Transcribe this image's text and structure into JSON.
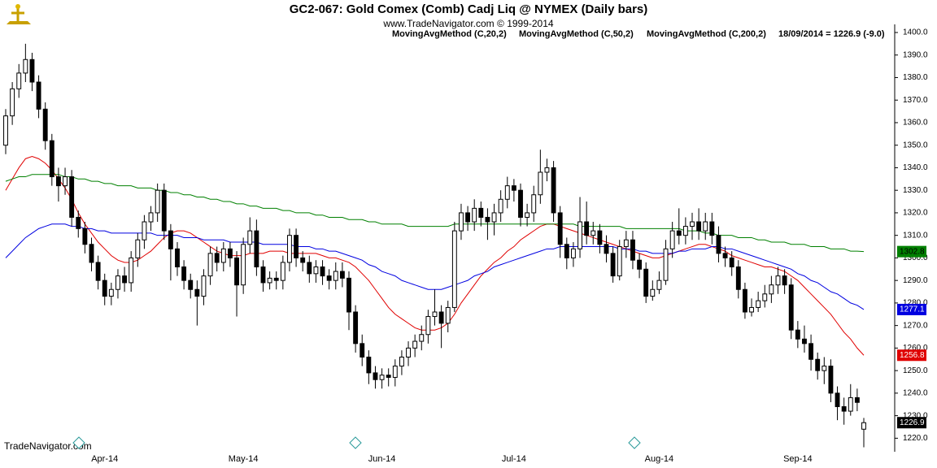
{
  "chart_data": {
    "type": "candlestick",
    "title": "GC2-067:  Gold Comex (Comb) Cadj Liq @ NYMEX  (Daily bars)",
    "subtitle": "www.TradeNavigator.com © 1999-2014",
    "annotation": "18/09/2014 = 1226.9 (-9.0)",
    "footer": "TradeNavigator.com",
    "up_color": "#ffffff",
    "down_color": "#000000",
    "categories": [
      null,
      null,
      null,
      null,
      null,
      null,
      null,
      null,
      null,
      null,
      null,
      null,
      null,
      null,
      null,
      "Apr-14",
      null,
      null,
      null,
      null,
      null,
      null,
      null,
      null,
      null,
      null,
      null,
      null,
      null,
      null,
      null,
      null,
      null,
      null,
      null,
      null,
      "May-14",
      null,
      null,
      null,
      null,
      null,
      null,
      null,
      null,
      null,
      null,
      null,
      null,
      null,
      null,
      null,
      null,
      null,
      null,
      null,
      null,
      "Jun-14",
      null,
      null,
      null,
      null,
      null,
      null,
      null,
      null,
      null,
      null,
      null,
      null,
      null,
      null,
      null,
      null,
      null,
      null,
      null,
      "Jul-14",
      null,
      null,
      null,
      null,
      null,
      null,
      null,
      null,
      null,
      null,
      null,
      null,
      null,
      null,
      null,
      null,
      null,
      null,
      null,
      null,
      null,
      "Aug-14",
      null,
      null,
      null,
      null,
      null,
      null,
      null,
      null,
      null,
      null,
      null,
      null,
      null,
      null,
      null,
      null,
      null,
      null,
      null,
      null,
      "Sep-14",
      null,
      null,
      null,
      null,
      null,
      null,
      null,
      null,
      null,
      null
    ],
    "open": [
      1350,
      1363,
      1375,
      1382,
      1388,
      1378,
      1366,
      1352,
      1336,
      1332,
      1336,
      1318,
      1313,
      1306,
      1298,
      1290,
      1283,
      1286,
      1292,
      1289,
      1300,
      1308,
      1316,
      1320,
      1330,
      1312,
      1304,
      1296,
      1290,
      1286,
      1283,
      1292,
      1302,
      1298,
      1304,
      1300,
      1288,
      1306,
      1312,
      1296,
      1289,
      1291,
      1290,
      1298,
      1310,
      1300,
      1298,
      1293,
      1296,
      1292,
      1290,
      1294,
      1291,
      1276,
      1262,
      1256,
      1249,
      1246,
      1248,
      1247,
      1252,
      1256,
      1260,
      1263,
      1266,
      1274,
      1276,
      1271,
      1278,
      1312,
      1320,
      1316,
      1322,
      1318,
      1316,
      1320,
      1326,
      1332,
      1330,
      1318,
      1320,
      1328,
      1338,
      1340,
      1320,
      1306,
      1300,
      1304,
      1316,
      1310,
      1312,
      1306,
      1302,
      1292,
      1305,
      1308,
      1299,
      1295,
      1283,
      1286,
      1290,
      1304,
      1312,
      1310,
      1314,
      1316,
      1312,
      1316,
      1310,
      1302,
      1300,
      1296,
      1286,
      1276,
      1278,
      1281,
      1284,
      1288,
      1292,
      1288,
      1268,
      1264,
      1262,
      1255,
      1250,
      1252,
      1240,
      1234,
      1232,
      1238,
      1224
    ],
    "high": [
      1366,
      1378,
      1386,
      1395,
      1391,
      1381,
      1369,
      1355,
      1340,
      1340,
      1339,
      1321,
      1316,
      1309,
      1301,
      1293,
      1289,
      1295,
      1296,
      1303,
      1311,
      1319,
      1323,
      1333,
      1333,
      1315,
      1307,
      1299,
      1293,
      1290,
      1295,
      1305,
      1305,
      1307,
      1307,
      1303,
      1309,
      1318,
      1317,
      1299,
      1294,
      1294,
      1301,
      1313,
      1313,
      1303,
      1301,
      1299,
      1299,
      1295,
      1298,
      1298,
      1294,
      1279,
      1266,
      1259,
      1252,
      1251,
      1251,
      1255,
      1259,
      1263,
      1266,
      1270,
      1277,
      1286,
      1279,
      1281,
      1316,
      1324,
      1323,
      1326,
      1325,
      1322,
      1324,
      1330,
      1336,
      1335,
      1333,
      1324,
      1332,
      1348,
      1344,
      1343,
      1323,
      1309,
      1307,
      1327,
      1325,
      1316,
      1315,
      1310,
      1305,
      1308,
      1312,
      1312,
      1302,
      1298,
      1290,
      1294,
      1308,
      1316,
      1322,
      1318,
      1320,
      1322,
      1320,
      1320,
      1314,
      1305,
      1303,
      1299,
      1289,
      1282,
      1285,
      1288,
      1292,
      1296,
      1295,
      1291,
      1272,
      1270,
      1266,
      1258,
      1256,
      1255,
      1243,
      1238,
      1244,
      1242,
      1229
    ],
    "low": [
      1346,
      1359,
      1371,
      1378,
      1374,
      1362,
      1348,
      1332,
      1325,
      1328,
      1314,
      1309,
      1302,
      1294,
      1286,
      1279,
      1279,
      1282,
      1285,
      1285,
      1296,
      1304,
      1312,
      1316,
      1308,
      1290,
      1292,
      1286,
      1282,
      1270,
      1279,
      1288,
      1294,
      1294,
      1296,
      1274,
      1284,
      1302,
      1292,
      1285,
      1286,
      1286,
      1286,
      1294,
      1296,
      1294,
      1289,
      1289,
      1288,
      1286,
      1286,
      1287,
      1268,
      1258,
      1252,
      1244,
      1242,
      1242,
      1243,
      1243,
      1248,
      1252,
      1256,
      1259,
      1262,
      1270,
      1260,
      1267,
      1276,
      1308,
      1312,
      1312,
      1314,
      1308,
      1310,
      1316,
      1322,
      1325,
      1314,
      1314,
      1316,
      1324,
      1334,
      1316,
      1300,
      1295,
      1296,
      1300,
      1306,
      1306,
      1302,
      1298,
      1289,
      1290,
      1300,
      1295,
      1291,
      1280,
      1281,
      1284,
      1288,
      1300,
      1306,
      1306,
      1308,
      1308,
      1308,
      1306,
      1298,
      1296,
      1292,
      1282,
      1273,
      1274,
      1276,
      1278,
      1280,
      1284,
      1284,
      1264,
      1260,
      1258,
      1250,
      1246,
      1244,
      1236,
      1228,
      1226,
      1230,
      1232,
      1216
    ],
    "close": [
      1363,
      1375,
      1382,
      1388,
      1378,
      1366,
      1352,
      1336,
      1332,
      1336,
      1318,
      1313,
      1306,
      1298,
      1290,
      1283,
      1286,
      1292,
      1289,
      1300,
      1308,
      1316,
      1320,
      1330,
      1312,
      1304,
      1296,
      1290,
      1286,
      1283,
      1292,
      1302,
      1298,
      1304,
      1300,
      1288,
      1306,
      1312,
      1296,
      1289,
      1291,
      1290,
      1298,
      1310,
      1300,
      1298,
      1293,
      1296,
      1292,
      1290,
      1294,
      1291,
      1276,
      1262,
      1256,
      1249,
      1246,
      1248,
      1247,
      1252,
      1256,
      1260,
      1263,
      1266,
      1274,
      1276,
      1271,
      1278,
      1312,
      1320,
      1316,
      1322,
      1318,
      1316,
      1320,
      1326,
      1332,
      1330,
      1318,
      1320,
      1328,
      1338,
      1340,
      1320,
      1306,
      1300,
      1304,
      1316,
      1310,
      1312,
      1306,
      1302,
      1292,
      1305,
      1308,
      1299,
      1295,
      1283,
      1286,
      1290,
      1304,
      1312,
      1310,
      1314,
      1316,
      1312,
      1316,
      1310,
      1302,
      1300,
      1296,
      1286,
      1276,
      1278,
      1281,
      1284,
      1288,
      1292,
      1288,
      1268,
      1264,
      1262,
      1255,
      1250,
      1252,
      1240,
      1234,
      1232,
      1238,
      1235.9,
      1226.9
    ],
    "series": [
      {
        "name": "MovingAvgMethod (C,20,2)",
        "color": "#e00000",
        "values": [
          1330,
          1335,
          1340,
          1344,
          1345,
          1344,
          1342,
          1339,
          1335,
          1331,
          1326,
          1320,
          1315,
          1311,
          1307,
          1304,
          1301,
          1299,
          1298,
          1298,
          1299,
          1301,
          1303,
          1306,
          1309,
          1311,
          1312,
          1312,
          1311,
          1309,
          1307,
          1305,
          1303,
          1302,
          1301,
          1301,
          1301,
          1302,
          1302,
          1302,
          1303,
          1303,
          1303,
          1302,
          1302,
          1302,
          1302,
          1302,
          1301,
          1300,
          1300,
          1299,
          1298,
          1296,
          1293,
          1290,
          1286,
          1282,
          1278,
          1275,
          1273,
          1271,
          1269,
          1268,
          1268,
          1268,
          1269,
          1271,
          1275,
          1280,
          1284,
          1288,
          1292,
          1295,
          1298,
          1300,
          1303,
          1305,
          1308,
          1310,
          1312,
          1314,
          1315,
          1315,
          1314,
          1313,
          1312,
          1311,
          1310,
          1309,
          1308,
          1307,
          1306,
          1305,
          1304,
          1303,
          1302,
          1301,
          1300,
          1300,
          1301,
          1302,
          1303,
          1304,
          1305,
          1306,
          1306,
          1305,
          1304,
          1303,
          1301,
          1300,
          1299,
          1298,
          1297,
          1296,
          1296,
          1295,
          1294,
          1292,
          1290,
          1287,
          1284,
          1281,
          1278,
          1275,
          1271,
          1267,
          1264,
          1260,
          1256.8
        ]
      },
      {
        "name": "MovingAvgMethod (C,50,2)",
        "color": "#0000e0",
        "values": [
          1300,
          1303,
          1306,
          1309,
          1311,
          1313,
          1314,
          1315,
          1315,
          1315,
          1314,
          1314,
          1313,
          1313,
          1312,
          1312,
          1311,
          1311,
          1311,
          1311,
          1311,
          1311,
          1311,
          1310,
          1310,
          1310,
          1310,
          1309,
          1309,
          1309,
          1308,
          1308,
          1308,
          1308,
          1307,
          1307,
          1307,
          1307,
          1307,
          1306,
          1306,
          1306,
          1306,
          1306,
          1305,
          1305,
          1305,
          1304,
          1304,
          1303,
          1303,
          1302,
          1301,
          1300,
          1299,
          1297,
          1296,
          1294,
          1293,
          1292,
          1290,
          1289,
          1288,
          1287,
          1286,
          1286,
          1286,
          1287,
          1288,
          1289,
          1290,
          1292,
          1293,
          1294,
          1296,
          1297,
          1298,
          1299,
          1300,
          1301,
          1302,
          1303,
          1304,
          1304,
          1305,
          1305,
          1305,
          1305,
          1305,
          1305,
          1305,
          1305,
          1305,
          1304,
          1304,
          1304,
          1303,
          1303,
          1302,
          1302,
          1302,
          1302,
          1303,
          1303,
          1304,
          1304,
          1304,
          1305,
          1305,
          1304,
          1304,
          1303,
          1302,
          1301,
          1300,
          1299,
          1298,
          1297,
          1296,
          1295,
          1293,
          1292,
          1290,
          1289,
          1287,
          1285,
          1284,
          1282,
          1280,
          1279,
          1277.1
        ]
      },
      {
        "name": "MovingAvgMethod (C,200,2)",
        "color": "#008000",
        "values": [
          1334,
          1335,
          1336,
          1336,
          1337,
          1337,
          1337,
          1337,
          1337,
          1336,
          1336,
          1335,
          1335,
          1334,
          1334,
          1333,
          1333,
          1332,
          1332,
          1332,
          1331,
          1331,
          1331,
          1330,
          1330,
          1329,
          1329,
          1328,
          1328,
          1327,
          1327,
          1326,
          1326,
          1325,
          1325,
          1324,
          1324,
          1323,
          1323,
          1322,
          1322,
          1322,
          1321,
          1321,
          1320,
          1320,
          1320,
          1319,
          1319,
          1318,
          1318,
          1318,
          1317,
          1317,
          1317,
          1316,
          1316,
          1315,
          1315,
          1315,
          1315,
          1314,
          1314,
          1314,
          1314,
          1314,
          1314,
          1314,
          1315,
          1315,
          1315,
          1315,
          1315,
          1315,
          1315,
          1315,
          1315,
          1315,
          1315,
          1315,
          1315,
          1315,
          1315,
          1315,
          1315,
          1315,
          1315,
          1314,
          1314,
          1314,
          1314,
          1314,
          1314,
          1314,
          1313,
          1313,
          1313,
          1313,
          1313,
          1313,
          1313,
          1313,
          1313,
          1312,
          1312,
          1312,
          1311,
          1311,
          1310,
          1310,
          1310,
          1309,
          1309,
          1309,
          1308,
          1308,
          1307,
          1307,
          1307,
          1306,
          1306,
          1306,
          1305,
          1305,
          1305,
          1304,
          1304,
          1304,
          1303,
          1303,
          1302.8
        ]
      }
    ],
    "ylim": [
      1214,
      1403.6
    ],
    "yticks": [
      {
        "value": 1220,
        "label": "1220.0"
      },
      {
        "value": 1230,
        "label": "1230.0"
      },
      {
        "value": 1240,
        "label": "1240.0"
      },
      {
        "value": 1250,
        "label": "1250.0"
      },
      {
        "value": 1260,
        "label": "1260.0"
      },
      {
        "value": 1270,
        "label": "1270.0"
      },
      {
        "value": 1280,
        "label": "1280.0"
      },
      {
        "value": 1290,
        "label": "1290.0"
      },
      {
        "value": 1300,
        "label": "1300.0"
      },
      {
        "value": 1310,
        "label": "1310.0"
      },
      {
        "value": 1320,
        "label": "1320.0"
      },
      {
        "value": 1330,
        "label": "1330.0"
      },
      {
        "value": 1340,
        "label": "1340.0"
      },
      {
        "value": 1350,
        "label": "1350.0"
      },
      {
        "value": 1360,
        "label": "1360.0"
      },
      {
        "value": 1370,
        "label": "1370.0"
      },
      {
        "value": 1380,
        "label": "1380.0"
      },
      {
        "value": 1390,
        "label": "1390.0"
      },
      {
        "value": 1400,
        "label": "1400.0"
      }
    ]
  }
}
